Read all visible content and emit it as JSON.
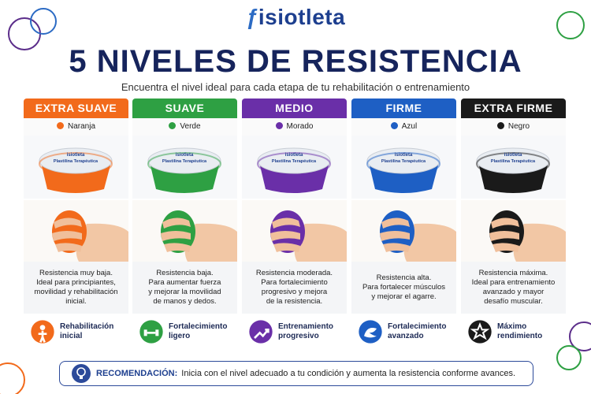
{
  "header": {
    "logo": "isiotleta",
    "title": "5 NIVELES DE RESISTENCIA",
    "subtitle": "Encuentra el nivel ideal para cada etapa de tu rehabilitación o entrenamiento"
  },
  "product_label": {
    "brand": "isiotleta",
    "name": "Plastilina Terapéutica"
  },
  "levels": [
    {
      "name": "EXTRA SUAVE",
      "color_name": "Naranja",
      "color": "#f26a1b",
      "description": [
        "Resistencia muy baja.",
        "Ideal para principiantes,",
        "movilidad y rehabilitación",
        "inicial."
      ],
      "benefit": [
        "Rehabilitación",
        "inicial"
      ]
    },
    {
      "name": "SUAVE",
      "color_name": "Verde",
      "color": "#2ea043",
      "description": [
        "Resistencia baja.",
        "Para aumentar fuerza",
        "y mejorar la movilidad",
        "de manos y dedos."
      ],
      "benefit": [
        "Fortalecimiento",
        "ligero"
      ]
    },
    {
      "name": "MEDIO",
      "color_name": "Morado",
      "color": "#6a2fa8",
      "description": [
        "Resistencia moderada.",
        "Para fortalecimiento",
        "progresivo y mejora",
        "de la resistencia."
      ],
      "benefit": [
        "Entrenamiento",
        "progresivo"
      ]
    },
    {
      "name": "FIRME",
      "color_name": "Azul",
      "color": "#1e5fc4",
      "description": [
        "Resistencia alta.",
        "Para fortalecer músculos",
        "y mejorar el agarre."
      ],
      "benefit": [
        "Fortalecimiento",
        "avanzado"
      ]
    },
    {
      "name": "EXTRA FIRME",
      "color_name": "Negro",
      "color": "#1a1a1a",
      "description": [
        "Resistencia máxima.",
        "Ideal para entrenamiento",
        "avanzado y mayor",
        "desafío muscular."
      ],
      "benefit": [
        "Máximo",
        "rendimiento"
      ]
    }
  ],
  "recommendation": {
    "label": "RECOMENDACIÓN:",
    "text": "Inicia con el nivel adecuado a tu condición y aumenta la resistencia conforme avances."
  }
}
